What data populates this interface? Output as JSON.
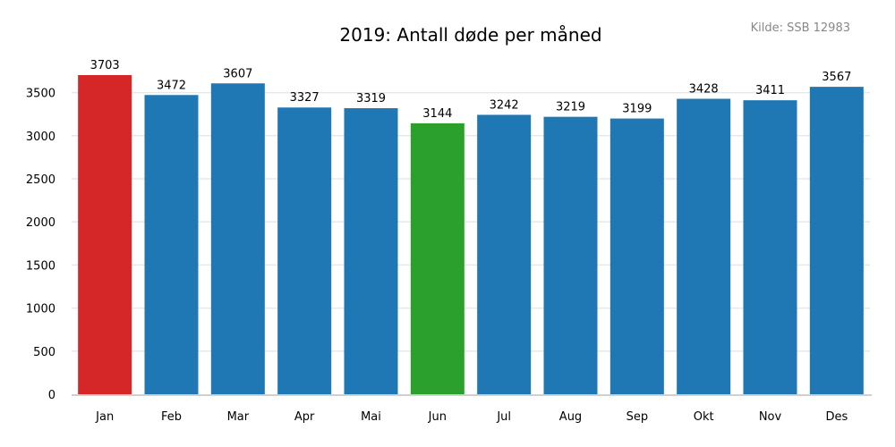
{
  "chart_data": {
    "type": "bar",
    "title": "2019: Antall døde per måned",
    "source": "Kilde: SSB 12983",
    "xlabel": "",
    "ylabel": "",
    "categories": [
      "Jan",
      "Feb",
      "Mar",
      "Apr",
      "Mai",
      "Jun",
      "Jul",
      "Aug",
      "Sep",
      "Okt",
      "Nov",
      "Des"
    ],
    "values": [
      3703,
      3472,
      3607,
      3327,
      3319,
      3144,
      3242,
      3219,
      3199,
      3428,
      3411,
      3567
    ],
    "bar_colors": [
      "#d62728",
      "#1f77b4",
      "#1f77b4",
      "#1f77b4",
      "#1f77b4",
      "#2ca02c",
      "#1f77b4",
      "#1f77b4",
      "#1f77b4",
      "#1f77b4",
      "#1f77b4",
      "#1f77b4"
    ],
    "ylim": [
      0,
      3703
    ],
    "yticks": [
      0,
      500,
      1000,
      1500,
      2000,
      2500,
      3000,
      3500
    ],
    "grid": true,
    "legend": "none"
  }
}
